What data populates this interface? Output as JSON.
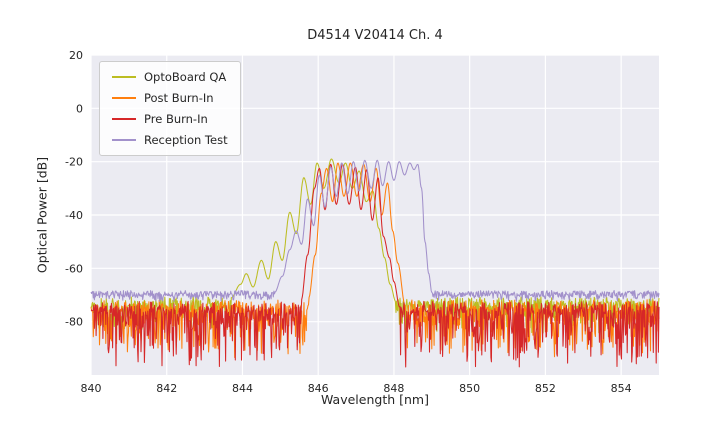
{
  "chart_data": {
    "type": "line",
    "title": "D4514 V20414 Ch. 4",
    "xlabel": "Wavelength [nm]",
    "ylabel": "Optical Power [dB]",
    "xlim": [
      840,
      855
    ],
    "ylim": [
      -100,
      20
    ],
    "xticks": [
      840,
      842,
      844,
      846,
      848,
      850,
      852,
      854
    ],
    "yticks": [
      20,
      0,
      -20,
      -40,
      -60,
      -80
    ],
    "grid": true,
    "legend_position": "upper left",
    "plot_bg": "#ebebf2",
    "grid_color": "#ffffff",
    "series": [
      {
        "name": "OptoBoard QA",
        "color": "#bcbd22",
        "noise": {
          "base": -72.5,
          "jitter": 1.8,
          "spike": 11,
          "seed": 7
        },
        "profile": [
          [
            843.7,
            -71
          ],
          [
            843.95,
            -66
          ],
          [
            844.1,
            -62
          ],
          [
            844.28,
            -67
          ],
          [
            844.5,
            -57
          ],
          [
            844.68,
            -64
          ],
          [
            844.88,
            -50
          ],
          [
            845.05,
            -57
          ],
          [
            845.25,
            -39
          ],
          [
            845.42,
            -47
          ],
          [
            845.62,
            -26
          ],
          [
            845.8,
            -36
          ],
          [
            845.97,
            -20.5
          ],
          [
            846.15,
            -30
          ],
          [
            846.35,
            -19
          ],
          [
            846.55,
            -28
          ],
          [
            846.72,
            -20.5
          ],
          [
            846.9,
            -30
          ],
          [
            847.08,
            -23.5
          ],
          [
            847.27,
            -35
          ],
          [
            847.44,
            -31
          ],
          [
            847.6,
            -45
          ],
          [
            847.75,
            -56
          ],
          [
            847.9,
            -66
          ],
          [
            848.05,
            -72.5
          ]
        ]
      },
      {
        "name": "Post Burn-In",
        "color": "#ff7f0e",
        "noise": {
          "base": -74,
          "jitter": 2.2,
          "spike": 18,
          "seed": 13
        },
        "profile": [
          [
            845.75,
            -71
          ],
          [
            845.92,
            -55
          ],
          [
            846.08,
            -32
          ],
          [
            846.22,
            -22.5
          ],
          [
            846.38,
            -35
          ],
          [
            846.52,
            -20.5
          ],
          [
            846.68,
            -33
          ],
          [
            846.85,
            -20.5
          ],
          [
            847.02,
            -33
          ],
          [
            847.2,
            -21
          ],
          [
            847.37,
            -35
          ],
          [
            847.53,
            -22.5
          ],
          [
            847.68,
            -40
          ],
          [
            847.83,
            -28
          ],
          [
            847.97,
            -46
          ],
          [
            848.1,
            -58
          ],
          [
            848.3,
            -74
          ]
        ]
      },
      {
        "name": "Pre Burn-In",
        "color": "#d62728",
        "noise": {
          "base": -74.5,
          "jitter": 2.2,
          "spike": 21,
          "seed": 29
        },
        "profile": [
          [
            845.55,
            -72
          ],
          [
            845.72,
            -55
          ],
          [
            845.9,
            -30
          ],
          [
            846.03,
            -22.5
          ],
          [
            846.18,
            -38
          ],
          [
            846.33,
            -21
          ],
          [
            846.48,
            -36
          ],
          [
            846.64,
            -21
          ],
          [
            846.82,
            -36
          ],
          [
            846.98,
            -22
          ],
          [
            847.13,
            -38
          ],
          [
            847.28,
            -23
          ],
          [
            847.43,
            -42
          ],
          [
            847.58,
            -26
          ],
          [
            847.72,
            -48
          ],
          [
            847.88,
            -56
          ],
          [
            848.0,
            -65
          ],
          [
            848.15,
            -74.5
          ]
        ]
      },
      {
        "name": "Reception Test",
        "color": "#a291cb",
        "noise": {
          "base": -69.3,
          "jitter": 1.0,
          "spike": 2.5,
          "seed": 41
        },
        "profile": [
          [
            844.85,
            -69
          ],
          [
            845.05,
            -63
          ],
          [
            845.25,
            -53
          ],
          [
            845.42,
            -46
          ],
          [
            845.56,
            -51
          ],
          [
            845.72,
            -34
          ],
          [
            845.88,
            -44
          ],
          [
            846.03,
            -25
          ],
          [
            846.18,
            -37
          ],
          [
            846.33,
            -22
          ],
          [
            846.48,
            -33
          ],
          [
            846.62,
            -20.5
          ],
          [
            846.78,
            -32
          ],
          [
            846.93,
            -20
          ],
          [
            847.08,
            -31
          ],
          [
            847.23,
            -19.5
          ],
          [
            847.4,
            -30
          ],
          [
            847.56,
            -19.5
          ],
          [
            847.7,
            -29
          ],
          [
            847.86,
            -20
          ],
          [
            848.0,
            -27
          ],
          [
            848.14,
            -20
          ],
          [
            848.28,
            -25
          ],
          [
            848.42,
            -20.5
          ],
          [
            848.53,
            -23
          ],
          [
            848.63,
            -21
          ],
          [
            848.73,
            -30
          ],
          [
            848.82,
            -50
          ],
          [
            848.92,
            -62
          ],
          [
            849.0,
            -69
          ]
        ]
      }
    ]
  }
}
